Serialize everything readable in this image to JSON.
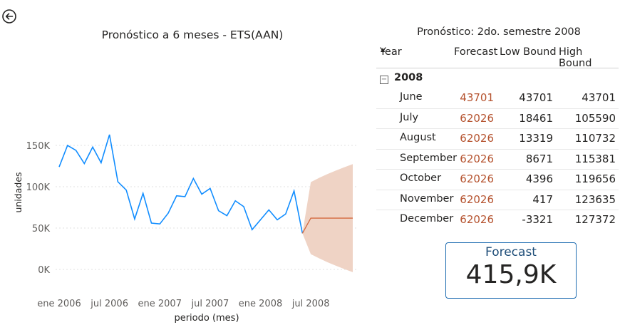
{
  "nav": {
    "back_icon": "back-arrow-icon"
  },
  "chart": {
    "title": "Pronóstico a 6 meses - ETS(AAN)",
    "xlabel": "periodo (mes)",
    "ylabel": "unidades",
    "y_ticks": [
      "0K",
      "50K",
      "100K",
      "150K"
    ],
    "x_ticks": [
      "ene 2006",
      "jul 2006",
      "ene 2007",
      "jul 2007",
      "ene 2008",
      "jul 2008"
    ]
  },
  "chart_data": {
    "type": "line",
    "title": "Pronóstico a 6 meses - ETS(AAN)",
    "xlabel": "periodo (mes)",
    "ylabel": "unidades",
    "ylim": [
      0,
      150000
    ],
    "grid": true,
    "x": [
      "2006-01",
      "2006-02",
      "2006-03",
      "2006-04",
      "2006-05",
      "2006-06",
      "2006-07",
      "2006-08",
      "2006-09",
      "2006-10",
      "2006-11",
      "2006-12",
      "2007-01",
      "2007-02",
      "2007-03",
      "2007-04",
      "2007-05",
      "2007-06",
      "2007-07",
      "2007-08",
      "2007-09",
      "2007-10",
      "2007-11",
      "2007-12",
      "2008-01",
      "2008-02",
      "2008-03",
      "2008-04",
      "2008-05",
      "2008-06",
      "2008-07",
      "2008-08",
      "2008-09",
      "2008-10",
      "2008-11",
      "2008-12"
    ],
    "series": [
      {
        "kind": "actual",
        "color": "#118dff",
        "values": [
          124000,
          150000,
          144000,
          128000,
          148000,
          129000,
          163000,
          106000,
          96000,
          61000,
          92000,
          56000,
          55000,
          68000,
          89000,
          88000,
          110000,
          91000,
          98000,
          71000,
          65000,
          83000,
          76000,
          48000,
          60000,
          72000,
          60000,
          67000,
          95000,
          43701,
          null,
          null,
          null,
          null,
          null,
          null
        ]
      },
      {
        "kind": "forecast",
        "color": "#d4693f",
        "values": [
          null,
          null,
          null,
          null,
          null,
          null,
          null,
          null,
          null,
          null,
          null,
          null,
          null,
          null,
          null,
          null,
          null,
          null,
          null,
          null,
          null,
          null,
          null,
          null,
          null,
          null,
          null,
          null,
          null,
          43701,
          62026,
          62026,
          62026,
          62026,
          62026,
          62026
        ]
      },
      {
        "kind": "low_bound",
        "values": [
          null,
          null,
          null,
          null,
          null,
          null,
          null,
          null,
          null,
          null,
          null,
          null,
          null,
          null,
          null,
          null,
          null,
          null,
          null,
          null,
          null,
          null,
          null,
          null,
          null,
          null,
          null,
          null,
          null,
          43701,
          18461,
          13319,
          8671,
          4396,
          417,
          -3321
        ]
      },
      {
        "kind": "high_bound",
        "values": [
          null,
          null,
          null,
          null,
          null,
          null,
          null,
          null,
          null,
          null,
          null,
          null,
          null,
          null,
          null,
          null,
          null,
          null,
          null,
          null,
          null,
          null,
          null,
          null,
          null,
          null,
          null,
          null,
          null,
          43701,
          105590,
          110732,
          115381,
          119656,
          123635,
          127372
        ]
      }
    ],
    "band_color": "#efd3c5"
  },
  "table": {
    "title": "Pronóstico: 2do. semestre 2008",
    "headers": {
      "year": "Year",
      "forecast": "Forecast",
      "low": "Low Bound",
      "high": "High Bound"
    },
    "group": "2008",
    "rows": [
      {
        "month": "June",
        "forecast": "43701",
        "low": "43701",
        "high": "43701"
      },
      {
        "month": "July",
        "forecast": "62026",
        "low": "18461",
        "high": "105590"
      },
      {
        "month": "August",
        "forecast": "62026",
        "low": "13319",
        "high": "110732"
      },
      {
        "month": "September",
        "forecast": "62026",
        "low": "8671",
        "high": "115381"
      },
      {
        "month": "October",
        "forecast": "62026",
        "low": "4396",
        "high": "119656"
      },
      {
        "month": "November",
        "forecast": "62026",
        "low": "417",
        "high": "123635"
      },
      {
        "month": "December",
        "forecast": "62026",
        "low": "-3321",
        "high": "127372"
      }
    ]
  },
  "card": {
    "label": "Forecast",
    "value": "415,9K"
  }
}
